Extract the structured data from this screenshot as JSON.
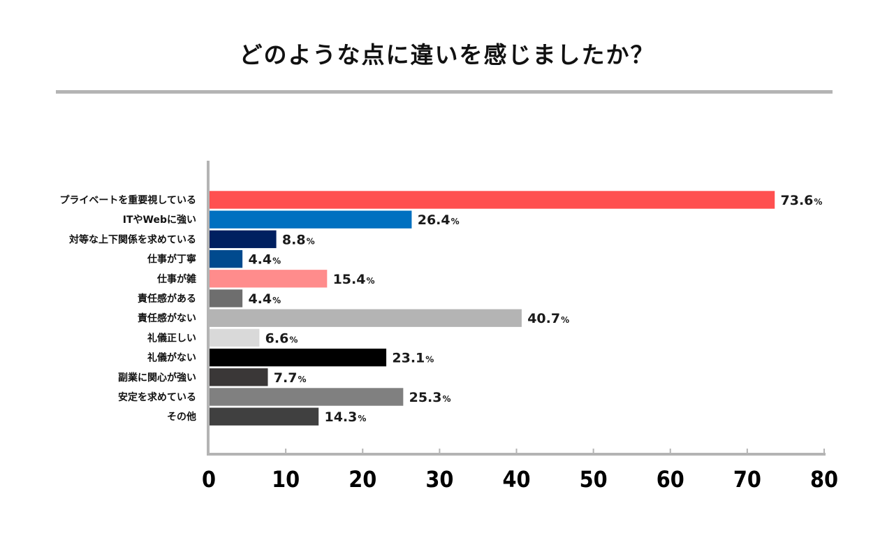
{
  "title": "どのような点に違いを感じましたか？",
  "chart_data": {
    "type": "bar",
    "orientation": "horizontal",
    "categories": [
      "プライベートを重要視している",
      "ITやWebに強い",
      "対等な上下関係を求めている",
      "仕事が丁寧",
      "仕事が雑",
      "責任感がある",
      "責任感がない",
      "礼儀正しい",
      "礼儀がない",
      "副業に関心が強い",
      "安定を求めている",
      "その他"
    ],
    "values": [
      73.6,
      26.4,
      8.8,
      4.4,
      15.4,
      4.4,
      40.7,
      6.6,
      23.1,
      7.7,
      25.3,
      14.3
    ],
    "value_labels": [
      "73.6",
      "26.4",
      "8.8",
      "4.4",
      "15.4",
      "4.4",
      "40.7",
      "6.6",
      "23.1",
      "7.7",
      "25.3",
      "14.3"
    ],
    "unit": "%",
    "colors": [
      "#ff5050",
      "#0070c0",
      "#002060",
      "#004a8e",
      "#ff8c8c",
      "#6e6e6e",
      "#b4b4b4",
      "#d9d9d9",
      "#000000",
      "#3a3737",
      "#808080",
      "#404040"
    ],
    "xlim": [
      0,
      80
    ],
    "xticks": [
      0,
      10,
      20,
      30,
      40,
      50,
      60,
      70,
      80
    ],
    "grid": false,
    "legend": "none",
    "xlabel": "",
    "ylabel": ""
  }
}
